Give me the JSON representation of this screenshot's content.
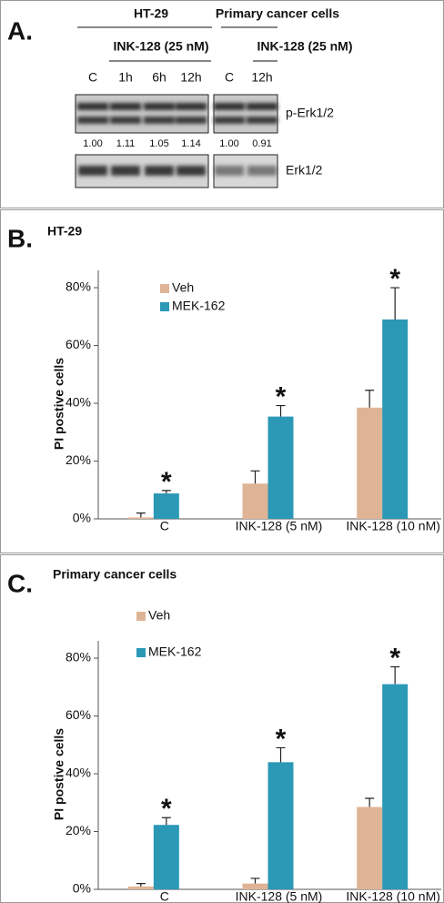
{
  "panel_a": {
    "letter": "A.",
    "cell_line": "HT-29",
    "primary": "Primary cancer cells",
    "treatment_left": "INK-128 (25 nM)",
    "treatment_right": "INK-128 (25 nM)",
    "lanes_left": [
      "C",
      "1h",
      "6h",
      "12h"
    ],
    "lanes_right": [
      "C",
      "12h"
    ],
    "quant_left": [
      "1.00",
      "1.11",
      "1.05",
      "1.14"
    ],
    "quant_right": [
      "1.00",
      "0.91"
    ],
    "band_labels": [
      "p-Erk1/2",
      "Erk1/2"
    ]
  },
  "chart_data": [
    {
      "type": "bar",
      "letter": "B.",
      "title": "HT-29",
      "y_label": "PI postive cells",
      "categories": [
        "C",
        "INK-128 (5 nM)",
        "INK-128 (10 nM)"
      ],
      "series": [
        {
          "name": "Veh",
          "color": "#dfb496",
          "values": [
            0.5,
            12.2,
            38.5
          ],
          "errors": [
            1.5,
            4.4,
            6
          ]
        },
        {
          "name": "MEK-162",
          "color": "#2b98b6",
          "values": [
            8.8,
            35.4,
            69
          ],
          "errors": [
            1,
            3.8,
            11
          ],
          "annotations": [
            "*",
            "*",
            "*"
          ]
        }
      ],
      "ylim": [
        0,
        86
      ],
      "yticks": [
        {
          "value": 0,
          "label": "0%"
        },
        {
          "value": 20,
          "label": "20%"
        },
        {
          "value": 40,
          "label": "40%"
        },
        {
          "value": 60,
          "label": "60%"
        },
        {
          "value": 80,
          "label": "80%"
        }
      ]
    },
    {
      "type": "bar",
      "letter": "C.",
      "title": "Primary cancer cells",
      "y_label": "PI postive cells",
      "categories": [
        "C",
        "INK-128 (5 nM)",
        "INK-128 (10 nM)"
      ],
      "series": [
        {
          "name": "Veh",
          "color": "#dfb496",
          "values": [
            1,
            2,
            28.5
          ],
          "errors": [
            1,
            1.8,
            3
          ]
        },
        {
          "name": "MEK-162",
          "color": "#2b98b6",
          "values": [
            22.3,
            44,
            71
          ],
          "errors": [
            2.5,
            5,
            6
          ],
          "annotations": [
            "*",
            "*",
            "*"
          ]
        }
      ],
      "ylim": [
        0,
        86
      ],
      "yticks": [
        {
          "value": 0,
          "label": "0%"
        },
        {
          "value": 20,
          "label": "20%"
        },
        {
          "value": 40,
          "label": "40%"
        },
        {
          "value": 60,
          "label": "60%"
        },
        {
          "value": 80,
          "label": "80%"
        }
      ]
    }
  ]
}
